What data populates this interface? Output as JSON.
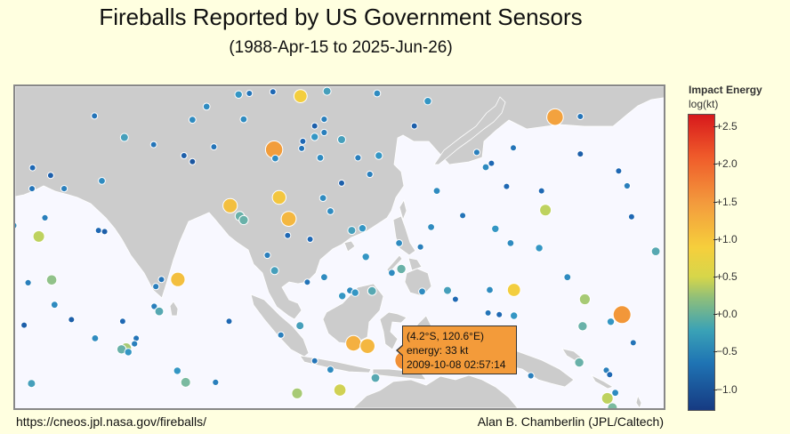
{
  "header": {
    "title": "Fireballs Reported by US Government Sensors",
    "subtitle": "(1988-Apr-15 to 2025-Jun-26)"
  },
  "footer": {
    "source": "https://cneos.jpl.nasa.gov/fireballs/",
    "author": "Alan B. Chamberlin (JPL/Caltech)"
  },
  "legend": {
    "title": "Impact Energy",
    "unit": "log(kt)",
    "ticks": [
      "+2.5",
      "+2.0",
      "+1.5",
      "+1.0",
      "+0.5",
      "+0.0",
      "−0.5",
      "−1.0"
    ]
  },
  "tooltip": {
    "location": "(4.2°S, 120.6°E)",
    "energy": "energy: 33 kt",
    "datetime": "2009-10-08 02:57:14"
  },
  "colors": {
    "background": "#ffffe0",
    "land": "#cccccc",
    "ocean": "#f8f8ff",
    "tooltip": "#f39b3a"
  },
  "events": [
    {
      "lon": 65.6,
      "lat": 40.2,
      "e": -0.7
    },
    {
      "lon": 70.9,
      "lat": 36.3,
      "e": -0.3
    },
    {
      "lon": 85.5,
      "lat": 41.9,
      "e": -0.5
    },
    {
      "lon": 91.2,
      "lat": 44.1,
      "e": -0.4
    },
    {
      "lon": 93.1,
      "lat": 44.3,
      "e": -0.7
    },
    {
      "lon": 97.3,
      "lat": 44.6,
      "e": -0.8
    },
    {
      "lon": 102.2,
      "lat": 43.8,
      "e": 0.6
    },
    {
      "lon": 106.9,
      "lat": 44.7,
      "e": -0.3
    },
    {
      "lon": 115.8,
      "lat": 44.3,
      "e": -0.5
    },
    {
      "lon": 106.4,
      "lat": 39.6,
      "e": -0.6
    },
    {
      "lon": 83.0,
      "lat": 39.5,
      "e": -0.5
    },
    {
      "lon": 92.1,
      "lat": 39.6,
      "e": -0.5
    },
    {
      "lon": 104.7,
      "lat": 38.4,
      "e": -0.9
    },
    {
      "lon": 106.4,
      "lat": 37.2,
      "e": -0.6
    },
    {
      "lon": 104.7,
      "lat": 36.4,
      "e": -0.4
    },
    {
      "lon": 109.5,
      "lat": 35.9,
      "e": -0.3
    },
    {
      "lon": 76.1,
      "lat": 35.0,
      "e": -0.7
    },
    {
      "lon": 86.8,
      "lat": 34.6,
      "e": -0.7
    },
    {
      "lon": 97.5,
      "lat": 34.1,
      "e": 1.3
    },
    {
      "lon": 102.6,
      "lat": 35.6,
      "e": -0.8
    },
    {
      "lon": 102.4,
      "lat": 34.3,
      "e": -0.7
    },
    {
      "lon": 81.5,
      "lat": 33.0,
      "e": -0.9
    },
    {
      "lon": 97.7,
      "lat": 32.5,
      "e": -0.5
    },
    {
      "lon": 105.7,
      "lat": 32.6,
      "e": -0.5
    },
    {
      "lon": 112.4,
      "lat": 32.6,
      "e": -0.6
    },
    {
      "lon": 83.0,
      "lat": 31.9,
      "e": -1.0
    },
    {
      "lon": 54.6,
      "lat": 30.8,
      "e": -0.8
    },
    {
      "lon": 57.8,
      "lat": 29.4,
      "e": -0.9
    },
    {
      "lon": 54.5,
      "lat": 27.0,
      "e": -0.7
    },
    {
      "lon": 66.9,
      "lat": 28.4,
      "e": -0.5
    },
    {
      "lon": 60.2,
      "lat": 27.0,
      "e": -0.6
    },
    {
      "lon": 98.4,
      "lat": 25.4,
      "e": 0.7
    },
    {
      "lon": 89.7,
      "lat": 23.9,
      "e": 0.8
    },
    {
      "lon": 91.4,
      "lat": 22.0,
      "e": -0.1
    },
    {
      "lon": 100.1,
      "lat": 21.5,
      "e": 0.9
    },
    {
      "lon": 103.9,
      "lat": 17.8,
      "e": -0.8
    },
    {
      "lon": 99.9,
      "lat": 18.5,
      "e": -0.8
    },
    {
      "lon": 107.5,
      "lat": 22.9,
      "e": -0.5
    },
    {
      "lon": 106.2,
      "lat": 25.3,
      "e": -0.5
    },
    {
      "lon": 116.1,
      "lat": 33.0,
      "e": -0.4
    },
    {
      "lon": 114.5,
      "lat": 29.6,
      "e": -0.6
    },
    {
      "lon": 109.5,
      "lat": 28.0,
      "e": -0.9
    },
    {
      "lon": 111.3,
      "lat": 19.4,
      "e": -0.3
    },
    {
      "lon": 124.8,
      "lat": 42.9,
      "e": -0.4
    },
    {
      "lon": 122.4,
      "lat": 38.4,
      "e": -0.9
    },
    {
      "lon": 133.5,
      "lat": 33.6,
      "e": -0.6
    },
    {
      "lon": 147.4,
      "lat": 40.0,
      "e": 1.2
    },
    {
      "lon": 151.9,
      "lat": 40.1,
      "e": -0.7
    },
    {
      "lon": 140.0,
      "lat": 34.4,
      "e": -0.7
    },
    {
      "lon": 151.9,
      "lat": 33.3,
      "e": -0.9
    },
    {
      "lon": 136.1,
      "lat": 31.6,
      "e": -0.8
    },
    {
      "lon": 158.7,
      "lat": 30.2,
      "e": -0.8
    },
    {
      "lon": 126.4,
      "lat": 26.6,
      "e": -0.5
    },
    {
      "lon": 135.1,
      "lat": 30.9,
      "e": -0.5
    },
    {
      "lon": 138.8,
      "lat": 27.4,
      "e": -0.8
    },
    {
      "lon": 145.0,
      "lat": 26.6,
      "e": -0.8
    },
    {
      "lon": 131.0,
      "lat": 22.1,
      "e": -0.7
    },
    {
      "lon": 136.8,
      "lat": 19.7,
      "e": -0.4
    },
    {
      "lon": 145.7,
      "lat": 23.1,
      "e": 0.3
    },
    {
      "lon": 160.2,
      "lat": 27.5,
      "e": -0.6
    },
    {
      "lon": 161.0,
      "lat": 21.9,
      "e": -0.8
    },
    {
      "lon": 144.6,
      "lat": 16.2,
      "e": -0.4
    },
    {
      "lon": 165.3,
      "lat": 15.6,
      "e": -0.2
    },
    {
      "lon": 139.5,
      "lat": 17.1,
      "e": -0.5
    },
    {
      "lon": 149.6,
      "lat": 10.9,
      "e": -0.5
    },
    {
      "lon": 140.1,
      "lat": 8.6,
      "e": 0.6
    },
    {
      "lon": 152.7,
      "lat": 6.9,
      "e": 0.2
    },
    {
      "lon": 125.4,
      "lat": 20.0,
      "e": -0.5
    },
    {
      "lon": 119.7,
      "lat": 17.1,
      "e": -0.5
    },
    {
      "lon": 113.2,
      "lat": 19.8,
      "e": -0.4
    },
    {
      "lon": 123.5,
      "lat": 16.4,
      "e": -0.6
    },
    {
      "lon": 113.8,
      "lat": 14.6,
      "e": -0.4
    },
    {
      "lon": 120.1,
      "lat": 12.4,
      "e": -0.1
    },
    {
      "lon": 118.4,
      "lat": 11.7,
      "e": -0.5
    },
    {
      "lon": 123.8,
      "lat": 8.3,
      "e": -0.5
    },
    {
      "lon": 128.3,
      "lat": 8.5,
      "e": -0.3
    },
    {
      "lon": 135.8,
      "lat": 8.6,
      "e": -0.5
    },
    {
      "lon": 129.7,
      "lat": 6.9,
      "e": -0.8
    },
    {
      "lon": 135.5,
      "lat": 4.4,
      "e": -0.7
    },
    {
      "lon": 137.5,
      "lat": 4.1,
      "e": -0.8
    },
    {
      "lon": 140.1,
      "lat": 3.9,
      "e": -0.4
    },
    {
      "lon": 139.8,
      "lat": 1.5,
      "e": -0.6
    },
    {
      "lon": 152.3,
      "lat": 2.0,
      "e": -0.1
    },
    {
      "lon": 159.3,
      "lat": 4.1,
      "e": 1.4
    },
    {
      "lon": 157.3,
      "lat": 2.8,
      "e": -0.4
    },
    {
      "lon": 161.3,
      "lat": -1.0,
      "e": -0.7
    },
    {
      "lon": 151.7,
      "lat": -4.6,
      "e": -0.1
    },
    {
      "lon": 156.5,
      "lat": -6.0,
      "e": -0.6
    },
    {
      "lon": 157.1,
      "lat": -6.8,
      "e": -0.8
    },
    {
      "lon": 158.1,
      "lat": -10.1,
      "e": -0.5
    },
    {
      "lon": 156.7,
      "lat": -11.1,
      "e": 0.3
    },
    {
      "lon": 157.6,
      "lat": -12.8,
      "e": 0.0
    },
    {
      "lon": 56.8,
      "lat": 21.7,
      "e": -0.6
    },
    {
      "lon": 51.2,
      "lat": 20.3,
      "e": -0.5
    },
    {
      "lon": 66.3,
      "lat": 19.4,
      "e": -0.8
    },
    {
      "lon": 55.7,
      "lat": 18.3,
      "e": 0.3
    },
    {
      "lon": 67.4,
      "lat": 19.2,
      "e": -0.9
    },
    {
      "lon": 58.0,
      "lat": 10.4,
      "e": 0.1
    },
    {
      "lon": 53.8,
      "lat": 9.9,
      "e": -0.6
    },
    {
      "lon": 58.5,
      "lat": 5.9,
      "e": -0.5
    },
    {
      "lon": 61.5,
      "lat": 3.2,
      "e": -0.9
    },
    {
      "lon": 53.1,
      "lat": 2.2,
      "e": -0.9
    },
    {
      "lon": 70.6,
      "lat": 2.9,
      "e": -0.8
    },
    {
      "lon": 80.4,
      "lat": 10.5,
      "e": 0.8
    },
    {
      "lon": 76.5,
      "lat": 9.2,
      "e": -0.6
    },
    {
      "lon": 77.5,
      "lat": 10.5,
      "e": -0.7
    },
    {
      "lon": 76.2,
      "lat": 5.6,
      "e": -0.6
    },
    {
      "lon": 77.1,
      "lat": 4.7,
      "e": -0.2
    },
    {
      "lon": 89.5,
      "lat": 2.9,
      "e": -0.8
    },
    {
      "lon": 65.7,
      "lat": -0.2,
      "e": -0.5
    },
    {
      "lon": 73.0,
      "lat": -0.2,
      "e": -0.7
    },
    {
      "lon": 72.7,
      "lat": -1.2,
      "e": -0.6
    },
    {
      "lon": 71.2,
      "lat": -2.0,
      "e": 0.2
    },
    {
      "lon": 70.4,
      "lat": -2.2,
      "e": -0.1
    },
    {
      "lon": 71.6,
      "lat": -2.7,
      "e": -0.4
    },
    {
      "lon": 80.3,
      "lat": -6.1,
      "e": -0.4
    },
    {
      "lon": 81.8,
      "lat": -8.2,
      "e": 0.0
    },
    {
      "lon": 87.1,
      "lat": -8.2,
      "e": -0.6
    },
    {
      "lon": 54.4,
      "lat": -8.4,
      "e": -0.3
    },
    {
      "lon": 92.1,
      "lat": 21.3,
      "e": -0.1
    },
    {
      "lon": 96.3,
      "lat": 14.9,
      "e": -0.6
    },
    {
      "lon": 97.6,
      "lat": 12.1,
      "e": -0.3
    },
    {
      "lon": 106.4,
      "lat": 10.9,
      "e": -0.5
    },
    {
      "lon": 103.4,
      "lat": 10.0,
      "e": -0.7
    },
    {
      "lon": 111.0,
      "lat": 8.5,
      "e": -0.5
    },
    {
      "lon": 111.9,
      "lat": 8.1,
      "e": -0.4
    },
    {
      "lon": 109.6,
      "lat": 7.5,
      "e": -0.4
    },
    {
      "lon": 114.9,
      "lat": 8.4,
      "e": -0.2
    },
    {
      "lon": 102.1,
      "lat": 2.1,
      "e": -0.3
    },
    {
      "lon": 98.7,
      "lat": 0.4,
      "e": -0.6
    },
    {
      "lon": 111.6,
      "lat": -1.1,
      "e": 1.0
    },
    {
      "lon": 114.1,
      "lat": -1.6,
      "e": 0.9
    },
    {
      "lon": 107.5,
      "lat": -5.9,
      "e": -0.5
    },
    {
      "lon": 104.7,
      "lat": -4.3,
      "e": -0.7
    },
    {
      "lon": 120.0,
      "lat": -3.5,
      "e": -0.4
    },
    {
      "lon": 122.5,
      "lat": -2.0,
      "e": -0.6
    },
    {
      "lon": 129.1,
      "lat": -1.8,
      "e": -0.7
    },
    {
      "lon": 134.6,
      "lat": -2.1,
      "e": -0.6
    },
    {
      "lon": 138.4,
      "lat": -5.6,
      "e": -0.7
    },
    {
      "lon": 143.1,
      "lat": -7.0,
      "e": -0.6
    },
    {
      "lon": 115.5,
      "lat": -7.4,
      "e": -0.2
    },
    {
      "lon": 109.2,
      "lat": -9.6,
      "e": 0.4
    },
    {
      "lon": 101.6,
      "lat": -10.2,
      "e": 0.2
    },
    {
      "lon": 120.6,
      "lat": -4.2,
      "e": 1.52
    }
  ]
}
